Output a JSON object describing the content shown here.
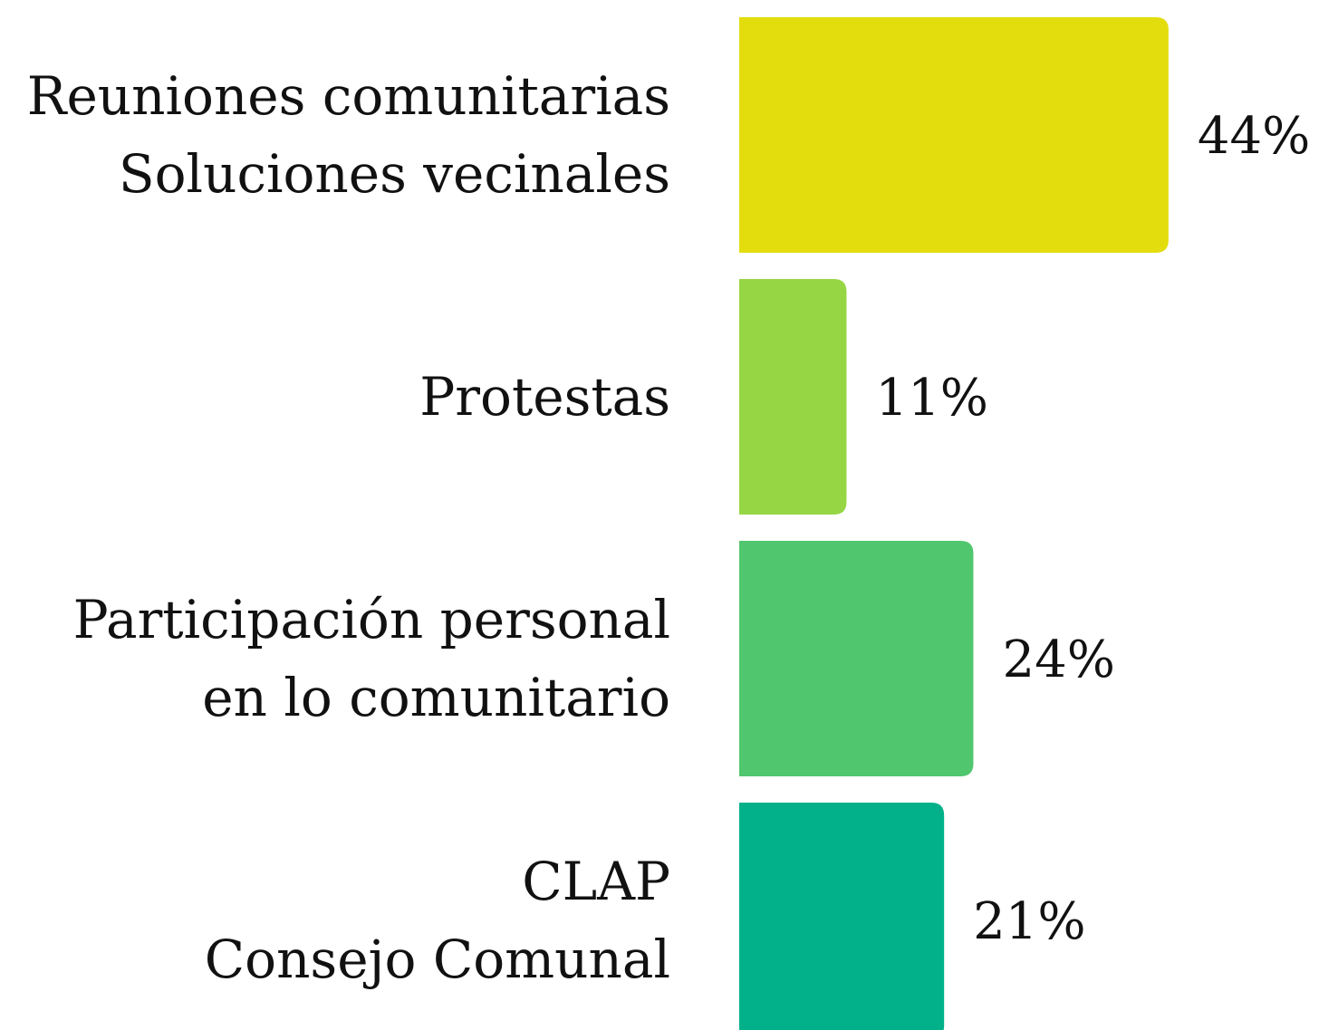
{
  "chart_data": {
    "type": "barh",
    "categories": [
      [
        "Reuniones comunitarias",
        "Soluciones vecinales"
      ],
      [
        "Protestas"
      ],
      [
        "Participación personal",
        "en lo comunitario"
      ],
      [
        "CLAP",
        "Consejo Comunal"
      ]
    ],
    "values": [
      44,
      11,
      24,
      21
    ],
    "value_labels": [
      "44%",
      "11%",
      "24%",
      "21%"
    ],
    "colors": [
      "#e3dd0e",
      "#96d645",
      "#50c76e",
      "#02b189"
    ]
  }
}
